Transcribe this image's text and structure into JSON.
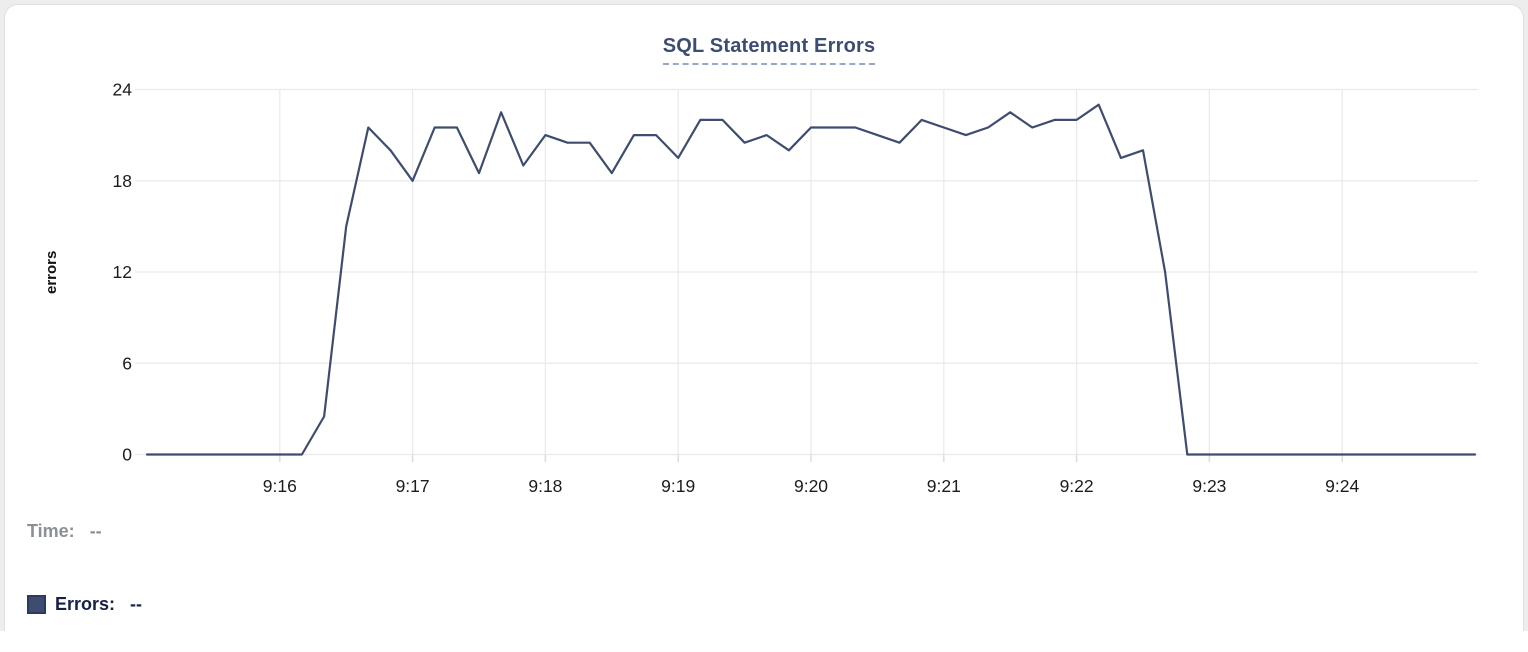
{
  "card": {
    "title": "SQL Statement Errors"
  },
  "tooltip_readout": {
    "time_label": "Time:",
    "time_value": "--",
    "errors_label": "Errors:",
    "errors_value": "--"
  },
  "colors": {
    "line": "#3e4d6f",
    "title_text": "#3d4d71",
    "legend_time_text": "#8b8f97",
    "legend_errors_text": "#152145",
    "swatch_fill": "#3e4d6f",
    "swatch_border": "#2c3a5f",
    "grid": "#e9e9eb",
    "tick_mark": "#dcdcdf",
    "axis_text": "#1c1c1e",
    "page_bg": "#ededee",
    "card_border": "#dfe0e3"
  },
  "chart_data": {
    "type": "line",
    "title": "SQL Statement Errors",
    "xlabel": "",
    "ylabel": "errors",
    "grid": true,
    "legend_position": "bottom-left",
    "x_ticks": [
      "9:16",
      "9:17",
      "9:18",
      "9:19",
      "9:20",
      "9:21",
      "9:22",
      "9:23",
      "9:24"
    ],
    "y_ticks": [
      0,
      6,
      12,
      18,
      24
    ],
    "ylim": [
      0,
      24
    ],
    "x_range": [
      "9:15:00",
      "9:25:00"
    ],
    "series": [
      {
        "name": "Errors",
        "x": [
          "9:15:00",
          "9:15:10",
          "9:15:20",
          "9:15:30",
          "9:15:40",
          "9:15:50",
          "9:16:00",
          "9:16:10",
          "9:16:20",
          "9:16:30",
          "9:16:40",
          "9:16:50",
          "9:17:00",
          "9:17:10",
          "9:17:20",
          "9:17:30",
          "9:17:40",
          "9:17:50",
          "9:18:00",
          "9:18:10",
          "9:18:20",
          "9:18:30",
          "9:18:40",
          "9:18:50",
          "9:19:00",
          "9:19:10",
          "9:19:20",
          "9:19:30",
          "9:19:40",
          "9:19:50",
          "9:20:00",
          "9:20:10",
          "9:20:20",
          "9:20:30",
          "9:20:40",
          "9:20:50",
          "9:21:00",
          "9:21:10",
          "9:21:20",
          "9:21:30",
          "9:21:40",
          "9:21:50",
          "9:22:00",
          "9:22:10",
          "9:22:20",
          "9:22:30",
          "9:22:40",
          "9:22:50",
          "9:23:00",
          "9:23:10",
          "9:23:20",
          "9:23:30",
          "9:23:40",
          "9:23:50",
          "9:24:00",
          "9:24:10",
          "9:24:20",
          "9:24:30",
          "9:24:40",
          "9:24:50",
          "9:25:00"
        ],
        "values": [
          0,
          0,
          0,
          0,
          0,
          0,
          0,
          0,
          2.5,
          15,
          21.5,
          20,
          18,
          21.5,
          21.5,
          18.5,
          22.5,
          19,
          21,
          20.5,
          20.5,
          18.5,
          21,
          21,
          19.5,
          22,
          22,
          20.5,
          21,
          20,
          21.5,
          21.5,
          21.5,
          21,
          20.5,
          22,
          21.5,
          21,
          21.5,
          22.5,
          21.5,
          22,
          22,
          23,
          19.5,
          20,
          12,
          0,
          0,
          0,
          0,
          0,
          0,
          0,
          0,
          0,
          0,
          0,
          0,
          0,
          0
        ]
      }
    ]
  }
}
